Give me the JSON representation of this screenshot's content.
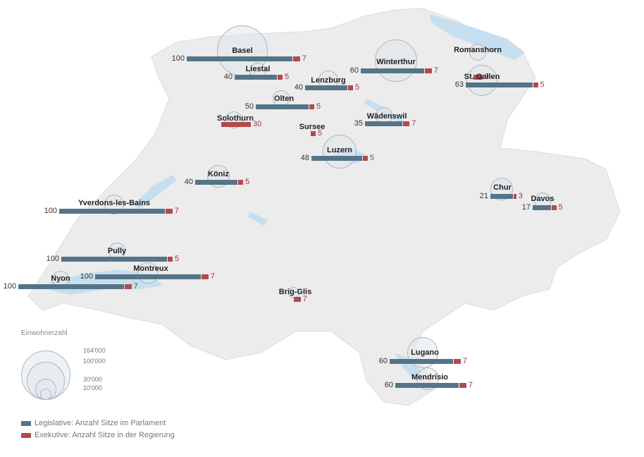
{
  "map": {
    "cities": [
      {
        "name": "Basel",
        "legislative": 100,
        "executive": 7
      },
      {
        "name": "Liestal",
        "legislative": 40,
        "executive": 5
      },
      {
        "name": "Lenzburg",
        "legislative": 40,
        "executive": 5
      },
      {
        "name": "Olten",
        "legislative": 50,
        "executive": 5
      },
      {
        "name": "Solothurn",
        "legislative": null,
        "executive": 30
      },
      {
        "name": "Sursee",
        "legislative": null,
        "executive": 5
      },
      {
        "name": "Luzern",
        "legislative": 48,
        "executive": 5
      },
      {
        "name": "Köniz",
        "legislative": 40,
        "executive": 5
      },
      {
        "name": "Yverdons-les-Bains",
        "legislative": 100,
        "executive": 7
      },
      {
        "name": "Pully",
        "legislative": 100,
        "executive": 5
      },
      {
        "name": "Montreux",
        "legislative": 100,
        "executive": 7
      },
      {
        "name": "Nyon",
        "legislative": 100,
        "executive": 7
      },
      {
        "name": "Brig-Glis",
        "legislative": null,
        "executive": 7
      },
      {
        "name": "Winterthur",
        "legislative": 60,
        "executive": 7
      },
      {
        "name": "Romanshorn",
        "legislative": null,
        "executive": 9
      },
      {
        "name": "St. Gallen",
        "legislative": 63,
        "executive": 5
      },
      {
        "name": "Wädenswil",
        "legislative": 35,
        "executive": 7
      },
      {
        "name": "Chur",
        "legislative": 21,
        "executive": 3
      },
      {
        "name": "Davos",
        "legislative": 17,
        "executive": 5
      },
      {
        "name": "Lugano",
        "legislative": 60,
        "executive": 7
      },
      {
        "name": "Mendrisio",
        "legislative": 60,
        "executive": 7
      }
    ]
  },
  "legend": {
    "size_title": "Einwohnerzahl",
    "scale_values": [
      "164'000",
      "100'000",
      "30'000",
      "10'000"
    ],
    "legislative_label": "Legislative: Anzahl Sitze im Parlament",
    "executive_label": "Exekutive: Anzahl Sitze in der Regierung"
  },
  "colors": {
    "legislative": "#557487",
    "executive": "#b5484c",
    "land": "#ececec",
    "water": "#c6dff0"
  }
}
